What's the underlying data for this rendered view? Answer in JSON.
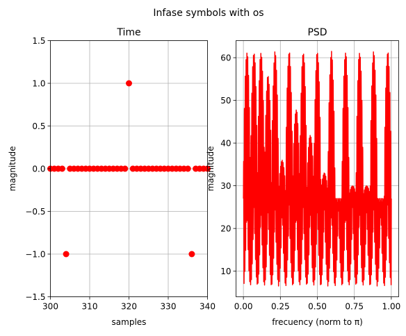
{
  "suptitle": "Infase symbols with os",
  "chart_data": [
    {
      "type": "scatter",
      "title": "Time",
      "xlabel": "samples",
      "ylabel": "magnitude",
      "xlim": [
        300,
        340
      ],
      "ylim": [
        -1.5,
        1.5
      ],
      "xticks": [
        "300",
        "310",
        "320",
        "330",
        "340"
      ],
      "yticks": [
        "1.5",
        "1.0",
        "0.5",
        "0.0",
        "−0.5",
        "−1.0",
        "−1.5"
      ],
      "grid": true,
      "marker_color": "#ff0000",
      "x": [
        300,
        301,
        302,
        303,
        304,
        305,
        306,
        307,
        308,
        309,
        310,
        311,
        312,
        313,
        314,
        315,
        316,
        317,
        318,
        319,
        320,
        321,
        322,
        323,
        324,
        325,
        326,
        327,
        328,
        329,
        330,
        331,
        332,
        333,
        334,
        335,
        336,
        337,
        338,
        339,
        340
      ],
      "y": [
        0,
        0,
        0,
        0,
        -1,
        0,
        0,
        0,
        0,
        0,
        0,
        0,
        0,
        0,
        0,
        0,
        0,
        0,
        0,
        0,
        1,
        0,
        0,
        0,
        0,
        0,
        0,
        0,
        0,
        0,
        0,
        0,
        0,
        0,
        0,
        0,
        -1,
        0,
        0,
        0,
        0
      ]
    },
    {
      "type": "line",
      "title": "PSD",
      "xlabel": "frecuency (norm to π)",
      "ylabel": "magnitude",
      "xlim": [
        -0.05,
        1.05
      ],
      "ylim": [
        4,
        64
      ],
      "xticks": [
        "0.00",
        "0.25",
        "0.50",
        "0.75",
        "1.00"
      ],
      "yticks": [
        "60",
        "50",
        "40",
        "30",
        "20",
        "10"
      ],
      "grid": true,
      "line_color": "#ff0000",
      "signal": {
        "lobes": 21,
        "baseline": 27,
        "peak_max": 61.5,
        "trough_min": 6.5,
        "interior_peaks": [
          56,
          36,
          48,
          42,
          33,
          24,
          30
        ],
        "x_range": [
          0,
          1
        ]
      }
    }
  ]
}
